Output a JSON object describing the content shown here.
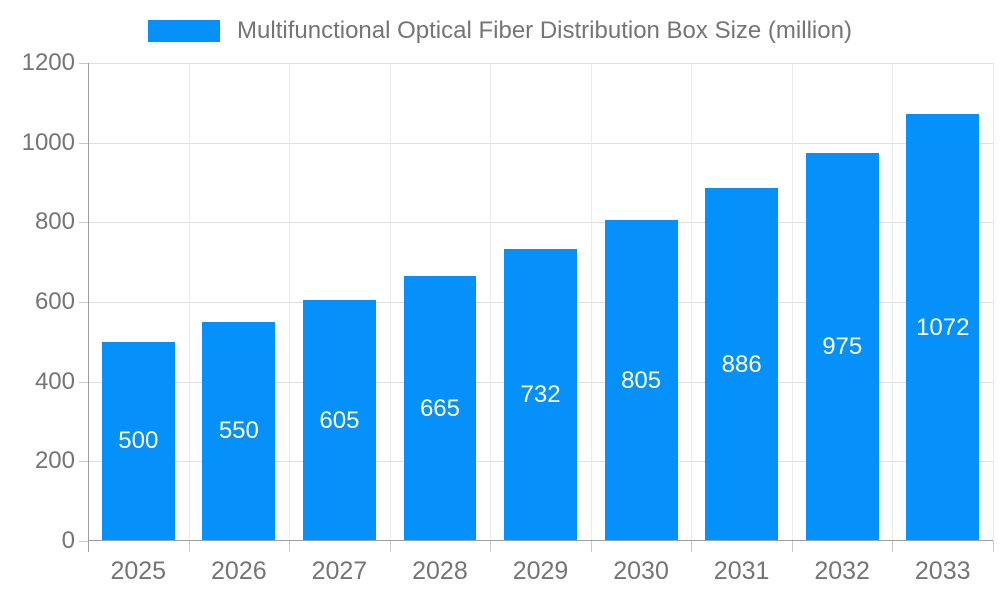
{
  "chart_data": {
    "type": "bar",
    "title": "Multifunctional Optical Fiber Distribution Box Size (million)",
    "legend": [
      "Multifunctional Optical Fiber Distribution Box Size (million)"
    ],
    "legend_position": "top",
    "categories": [
      "2025",
      "2026",
      "2027",
      "2028",
      "2029",
      "2030",
      "2031",
      "2032",
      "2033"
    ],
    "values": [
      500,
      550,
      605,
      665,
      732,
      805,
      886,
      975,
      1072
    ],
    "xlabel": "",
    "ylabel": "",
    "ylim": [
      0,
      1200
    ],
    "yticks": [
      0,
      200,
      400,
      600,
      800,
      1000,
      1200
    ],
    "grid": true,
    "bar_labels_visible": true
  },
  "colors": {
    "bar": "#0590fa",
    "bar_label": "#ffffff",
    "axis_text": "#757575",
    "title_text": "#757575",
    "axis_line": "#9e9e9e",
    "gridline": "#e0e0e0",
    "background": "#ffffff"
  }
}
